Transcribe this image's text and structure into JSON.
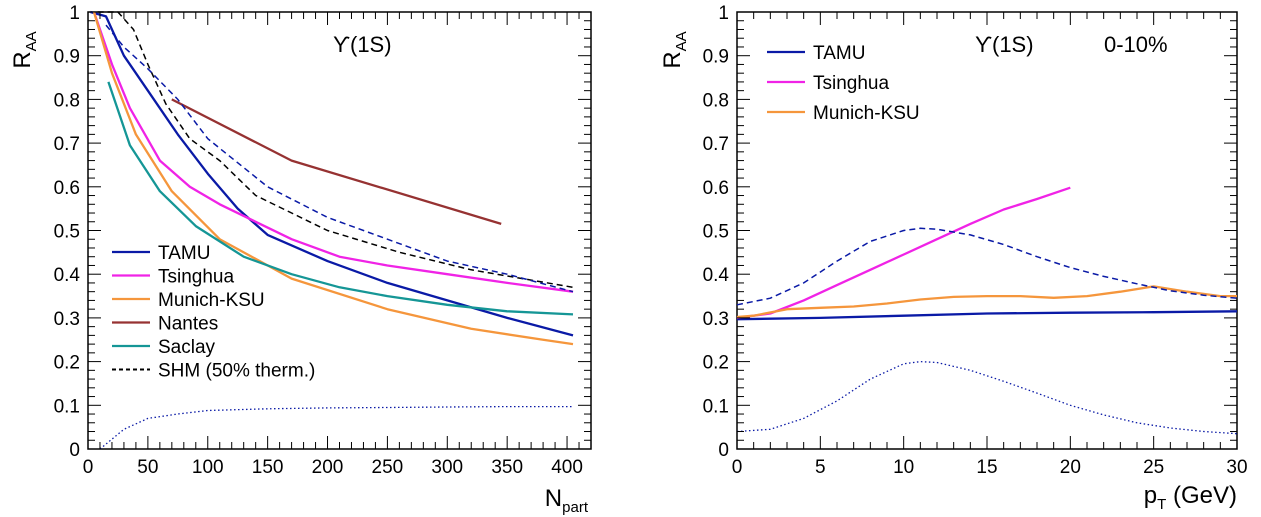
{
  "chart_data": [
    {
      "type": "line",
      "ylabel": "R",
      "ylabel_sub": "AA",
      "xlabel": "N",
      "xlabel_sub": "part",
      "xlim": [
        0,
        420
      ],
      "ylim": [
        0,
        1
      ],
      "xticks": [
        "0",
        "50",
        "100",
        "150",
        "200",
        "250",
        "300",
        "350",
        "400"
      ],
      "yticks": [
        "0",
        "0.1",
        "0.2",
        "0.3",
        "0.4",
        "0.5",
        "0.6",
        "0.7",
        "0.8",
        "0.9",
        "1"
      ],
      "annotations": [
        "ϒ(1S)"
      ],
      "legend_position": "bottom-left",
      "grid": false,
      "series": [
        {
          "name": "TAMU",
          "color": "#0a1aa6",
          "style": "solid",
          "x": [
            2,
            15,
            30,
            50,
            75,
            100,
            125,
            150,
            200,
            250,
            300,
            350,
            405
          ],
          "y": [
            1.0,
            0.99,
            0.9,
            0.82,
            0.72,
            0.63,
            0.55,
            0.49,
            0.43,
            0.38,
            0.34,
            0.3,
            0.26
          ]
        },
        {
          "name": "Tsinghua",
          "color": "#f023e6",
          "style": "solid",
          "x": [
            5,
            20,
            35,
            60,
            85,
            110,
            140,
            170,
            210,
            250,
            300,
            350,
            405
          ],
          "y": [
            1.0,
            0.88,
            0.78,
            0.66,
            0.6,
            0.56,
            0.52,
            0.48,
            0.44,
            0.42,
            0.4,
            0.38,
            0.36
          ]
        },
        {
          "name": "Munich-KSU",
          "color": "#f5963c",
          "style": "solid",
          "x": [
            5,
            20,
            40,
            70,
            110,
            170,
            250,
            320,
            380,
            405
          ],
          "y": [
            1.0,
            0.86,
            0.72,
            0.59,
            0.48,
            0.39,
            0.32,
            0.275,
            0.25,
            0.24
          ]
        },
        {
          "name": "Nantes",
          "color": "#963232",
          "style": "solid",
          "x": [
            70,
            170,
            345
          ],
          "y": [
            0.8,
            0.66,
            0.515
          ]
        },
        {
          "name": "Saclay",
          "color": "#159696",
          "style": "solid",
          "x": [
            17,
            35,
            60,
            90,
            130,
            170,
            210,
            250,
            300,
            350,
            405
          ],
          "y": [
            0.84,
            0.695,
            0.59,
            0.51,
            0.44,
            0.4,
            0.37,
            0.35,
            0.33,
            0.315,
            0.308
          ]
        },
        {
          "name": "SHM (50% therm.)",
          "color": "#000000",
          "style": "dashed",
          "x": [
            8,
            25,
            38,
            50,
            65,
            85,
            110,
            140,
            200,
            260,
            320,
            405
          ],
          "y": [
            1.0,
            1.0,
            0.96,
            0.88,
            0.79,
            0.71,
            0.66,
            0.58,
            0.5,
            0.45,
            0.41,
            0.37
          ]
        },
        {
          "name": "",
          "color": "#0a1aa6",
          "style": "dashed",
          "x": [
            15,
            30,
            50,
            75,
            100,
            150,
            200,
            250,
            300,
            350,
            405
          ],
          "y": [
            0.97,
            0.92,
            0.87,
            0.8,
            0.71,
            0.6,
            0.53,
            0.48,
            0.43,
            0.4,
            0.36
          ]
        },
        {
          "name": "",
          "color": "#0a1aa6",
          "style": "dotted",
          "x": [
            10,
            30,
            50,
            75,
            100,
            150,
            200,
            250,
            300,
            350,
            405
          ],
          "y": [
            0.0,
            0.045,
            0.07,
            0.08,
            0.088,
            0.092,
            0.094,
            0.095,
            0.096,
            0.097,
            0.097
          ]
        }
      ]
    },
    {
      "type": "line",
      "ylabel": "R",
      "ylabel_sub": "AA",
      "xlabel": "p",
      "xlabel_sub": "T",
      "xlabel_unit": " (GeV)",
      "xlim": [
        0,
        30
      ],
      "ylim": [
        0,
        1
      ],
      "xticks": [
        "0",
        "5",
        "10",
        "15",
        "20",
        "25",
        "30"
      ],
      "yticks": [
        "0",
        "0.1",
        "0.2",
        "0.3",
        "0.4",
        "0.5",
        "0.6",
        "0.7",
        "0.8",
        "0.9",
        "1"
      ],
      "annotations": [
        "ϒ(1S)",
        "0-10%"
      ],
      "legend_position": "top-left",
      "grid": false,
      "series": [
        {
          "name": "TAMU",
          "color": "#0a1aa6",
          "style": "solid",
          "x": [
            0,
            5,
            10,
            15,
            20,
            25,
            30
          ],
          "y": [
            0.297,
            0.3,
            0.305,
            0.31,
            0.312,
            0.313,
            0.315
          ]
        },
        {
          "name": "Tsinghua",
          "color": "#f023e6",
          "style": "solid",
          "x": [
            0,
            2,
            4,
            6,
            8,
            10,
            12,
            14,
            16,
            18,
            20
          ],
          "y": [
            0.3,
            0.31,
            0.34,
            0.375,
            0.41,
            0.445,
            0.48,
            0.515,
            0.548,
            0.572,
            0.598
          ]
        },
        {
          "name": "Munich-KSU",
          "color": "#f5963c",
          "style": "solid",
          "x": [
            0,
            1,
            3,
            5,
            7,
            9,
            11,
            13,
            15,
            17,
            19,
            21,
            23,
            25,
            27,
            29,
            30
          ],
          "y": [
            0.302,
            0.305,
            0.32,
            0.323,
            0.326,
            0.333,
            0.342,
            0.348,
            0.35,
            0.35,
            0.346,
            0.35,
            0.36,
            0.372,
            0.36,
            0.35,
            0.35
          ]
        },
        {
          "name": "",
          "color": "#0a1aa6",
          "style": "dashed",
          "x": [
            0,
            2,
            4,
            6,
            8,
            10,
            11,
            12,
            14,
            16,
            18,
            20,
            22,
            24,
            26,
            28,
            30
          ],
          "y": [
            0.33,
            0.345,
            0.38,
            0.43,
            0.475,
            0.5,
            0.505,
            0.503,
            0.49,
            0.468,
            0.44,
            0.415,
            0.395,
            0.378,
            0.362,
            0.352,
            0.345
          ]
        },
        {
          "name": "",
          "color": "#0a1aa6",
          "style": "dotted",
          "x": [
            0,
            2,
            4,
            6,
            8,
            10,
            11,
            12,
            14,
            16,
            18,
            20,
            22,
            24,
            26,
            28,
            30
          ],
          "y": [
            0.04,
            0.045,
            0.07,
            0.11,
            0.16,
            0.195,
            0.2,
            0.198,
            0.18,
            0.155,
            0.128,
            0.1,
            0.078,
            0.06,
            0.048,
            0.04,
            0.035
          ]
        }
      ]
    }
  ]
}
